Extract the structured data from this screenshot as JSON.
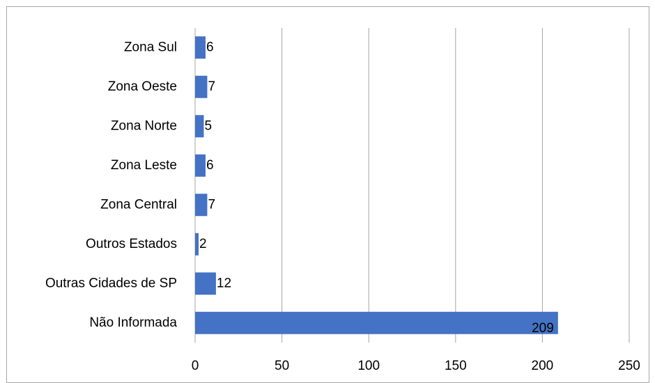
{
  "chart_data": {
    "type": "bar",
    "orientation": "horizontal",
    "categories": [
      "Não Informada",
      "Outras Cidades de SP",
      "Outros Estados",
      "Zona Central",
      "Zona Leste",
      "Zona Norte",
      "Zona Oeste",
      "Zona Sul"
    ],
    "values": [
      209,
      12,
      2,
      7,
      6,
      5,
      7,
      6
    ],
    "color": "#4472c4",
    "xlim": [
      0,
      250
    ],
    "xticks": [
      0,
      50,
      100,
      150,
      200,
      250
    ],
    "grid": true
  }
}
